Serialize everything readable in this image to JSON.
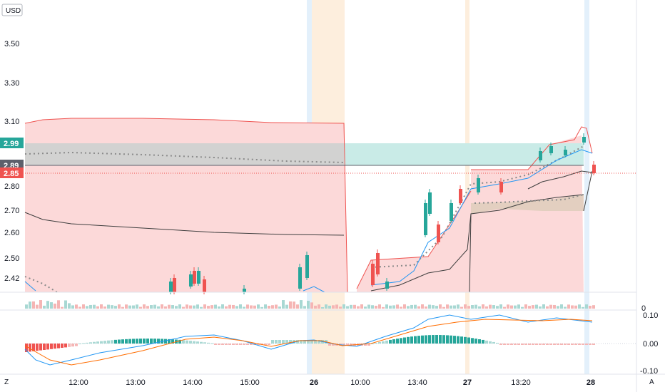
{
  "currency_label": "USD",
  "price_axis": {
    "ticks": [
      "3.50",
      "3.30",
      "3.10",
      "2.80",
      "2.70",
      "2.60",
      "2.50",
      "2.42"
    ],
    "tick_values": [
      3.5,
      3.3,
      3.1,
      2.8,
      2.7,
      2.6,
      2.5,
      2.42
    ]
  },
  "price_tags": [
    {
      "label": "2.99",
      "value": 2.99,
      "color": "#26a69a"
    },
    {
      "label": "2.89",
      "value": 2.89,
      "color": "#5d606b"
    },
    {
      "label": "2.85",
      "value": 2.85,
      "color": "#ef5350"
    }
  ],
  "volume_axis": {
    "ticks": [
      "0"
    ]
  },
  "macd_axis": {
    "ticks": [
      "0.10",
      "0.00",
      "-0.10"
    ],
    "tick_values": [
      0.1,
      0.0,
      -0.1
    ]
  },
  "time_axis": {
    "labels": [
      {
        "text": "12:00",
        "bold": false
      },
      {
        "text": "13:00",
        "bold": false
      },
      {
        "text": "14:00",
        "bold": false
      },
      {
        "text": "15:00",
        "bold": false
      },
      {
        "text": "26",
        "bold": true
      },
      {
        "text": "10:00",
        "bold": false
      },
      {
        "text": "13:40",
        "bold": false
      },
      {
        "text": "27",
        "bold": true
      },
      {
        "text": "13:20",
        "bold": false
      },
      {
        "text": "28",
        "bold": true
      }
    ]
  },
  "bottom_controls": {
    "left": "Z",
    "right": "A"
  },
  "colors": {
    "up": "#26a69a",
    "down": "#ef5350",
    "cloud_red": "#f8c9c9",
    "cloud_green": "#bfe6e2",
    "macd_line": "#2196f3",
    "signal_line": "#ff6d00"
  },
  "chart_data": {
    "type": "candlestick",
    "price_range": [
      2.37,
      3.66
    ],
    "current_price": 2.85,
    "macd_range": [
      -0.1,
      0.1
    ]
  }
}
